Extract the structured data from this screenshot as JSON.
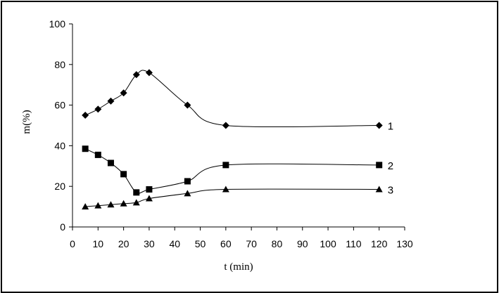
{
  "chart_data": {
    "type": "line",
    "title": "",
    "xlabel": "t (min)",
    "ylabel": "m(%)",
    "xlim": [
      0,
      130
    ],
    "ylim": [
      0,
      100
    ],
    "xticks": [
      0,
      10,
      20,
      30,
      40,
      50,
      60,
      70,
      80,
      90,
      100,
      110,
      120,
      130
    ],
    "yticks": [
      0,
      20,
      40,
      60,
      80,
      100
    ],
    "grid": false,
    "legend": "inline labels at right end of each series",
    "series": [
      {
        "name": "1",
        "marker": "diamond",
        "x": [
          5,
          10,
          15,
          20,
          25,
          30,
          45,
          60,
          120
        ],
        "y": [
          55,
          58,
          62,
          66,
          75,
          76,
          60,
          50,
          50
        ]
      },
      {
        "name": "2",
        "marker": "square",
        "x": [
          5,
          10,
          15,
          20,
          25,
          30,
          45,
          60,
          120
        ],
        "y": [
          38.5,
          35.5,
          31.5,
          26,
          17,
          18.5,
          22.5,
          30.5,
          30.5
        ]
      },
      {
        "name": "3",
        "marker": "triangle",
        "x": [
          5,
          10,
          15,
          20,
          25,
          30,
          45,
          60,
          120
        ],
        "y": [
          10,
          10.5,
          11,
          11.5,
          12,
          14,
          16.5,
          18.5,
          18.5
        ]
      }
    ]
  }
}
